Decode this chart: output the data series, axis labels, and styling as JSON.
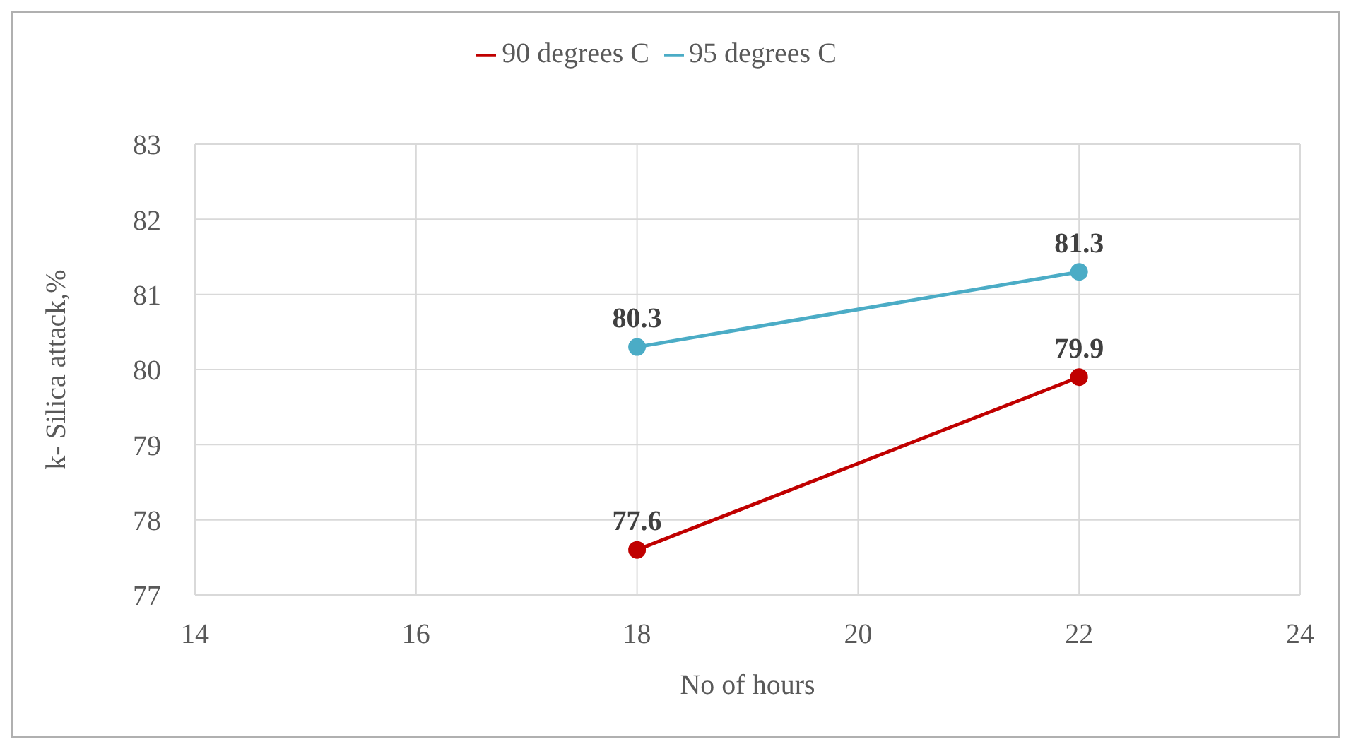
{
  "chart_data": {
    "type": "line",
    "xlabel": "No of hours",
    "ylabel": "k- Silica attack,%",
    "x": [
      18,
      22
    ],
    "series": [
      {
        "name": "90 degrees C",
        "color": "#c00000",
        "values": [
          77.6,
          79.9
        ]
      },
      {
        "name": "95 degrees C",
        "color": "#4bacc6",
        "values": [
          80.3,
          81.3
        ]
      }
    ],
    "xlim": [
      14,
      24
    ],
    "xticks": [
      14,
      16,
      18,
      20,
      22,
      24
    ],
    "ylim": [
      77,
      83
    ],
    "yticks": [
      77,
      78,
      79,
      80,
      81,
      82,
      83
    ],
    "grid": true,
    "legend": "top",
    "marker": "circle",
    "line_style": "solid",
    "data_labels": true
  }
}
